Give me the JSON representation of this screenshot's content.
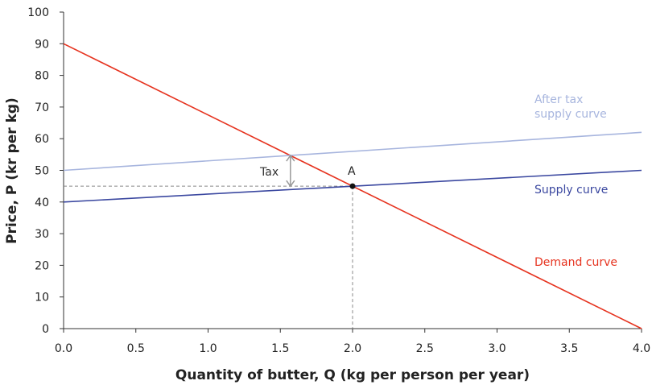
{
  "chart_data": {
    "type": "line",
    "xlabel": "Quantity of butter, Q (kg per person per year)",
    "ylabel": "Price, P (kr per kg)",
    "xlim": [
      0,
      4
    ],
    "ylim": [
      0,
      100
    ],
    "xticks": [
      "0.0",
      "0.5",
      "1.0",
      "1.5",
      "2.0",
      "2.5",
      "3.0",
      "3.5",
      "4.0"
    ],
    "yticks": [
      "0",
      "10",
      "20",
      "30",
      "40",
      "50",
      "60",
      "70",
      "80",
      "90",
      "100"
    ],
    "grid": false,
    "series": [
      {
        "name": "Demand curve",
        "color": "#e6331f",
        "x": [
          0,
          4
        ],
        "y": [
          90,
          0
        ]
      },
      {
        "name": "Supply curve",
        "color": "#3b48a0",
        "x": [
          0,
          4
        ],
        "y": [
          40,
          50
        ]
      },
      {
        "name": "After tax supply curve",
        "color": "#a7b5de",
        "x": [
          0,
          4
        ],
        "y": [
          50,
          62
        ]
      }
    ],
    "annotations": {
      "point": {
        "label": "A",
        "x": 2.0,
        "y": 45
      },
      "tax": {
        "label": "Tax",
        "x": 1.57,
        "from": 45,
        "to": 54.7
      },
      "after_tax_label_line1": "After tax",
      "after_tax_label_line2": "supply curve"
    }
  }
}
